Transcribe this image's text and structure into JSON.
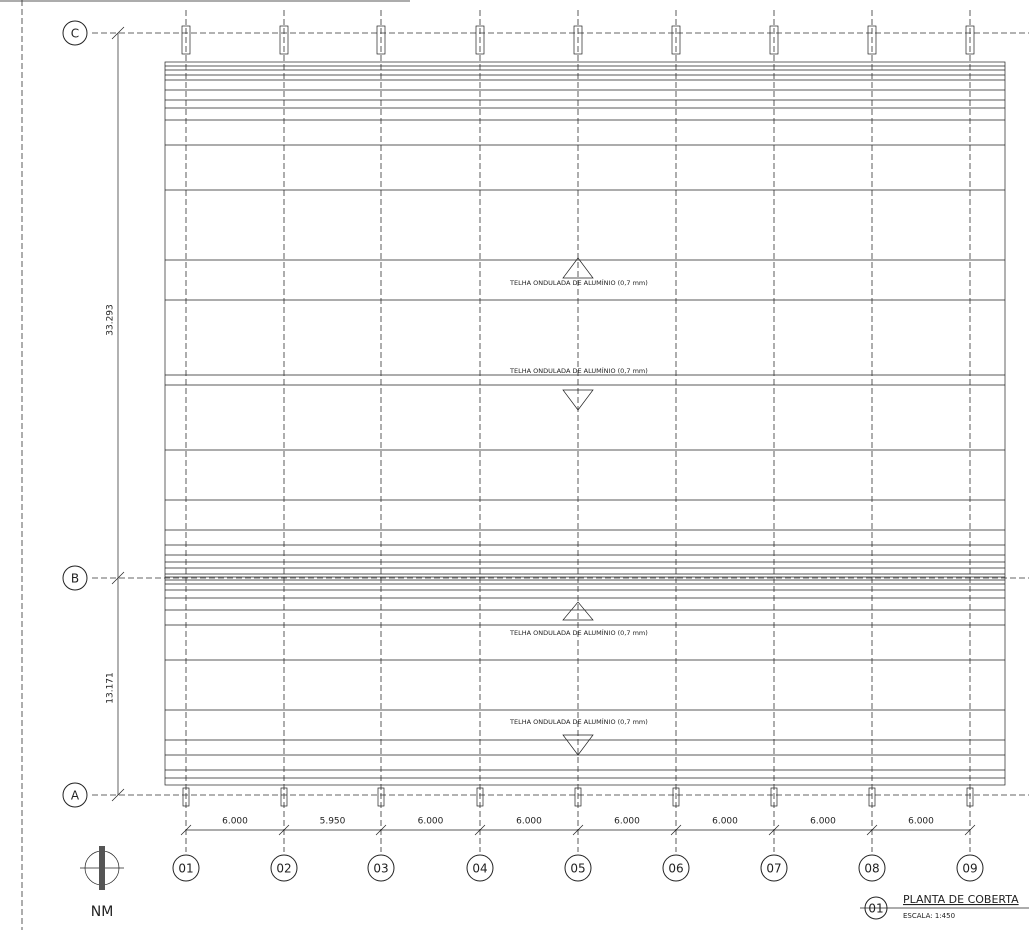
{
  "grid_rows": [
    {
      "label": "C"
    },
    {
      "label": "B"
    },
    {
      "label": "A"
    }
  ],
  "grid_columns": [
    "01",
    "02",
    "03",
    "04",
    "05",
    "06",
    "07",
    "08",
    "09"
  ],
  "vertical_dimensions": [
    "33.293",
    "13.171"
  ],
  "horizontal_dimensions": [
    "6.000",
    "5.950",
    "6.000",
    "6.000",
    "6.000",
    "6.000",
    "6.000",
    "6.000"
  ],
  "roof_labels": [
    "TELHA ONDULADA DE ALUMÍNIO (0,7 mm)",
    "TELHA ONDULADA DE ALUMÍNIO (0,7 mm)",
    "TELHA ONDULADA DE ALUMÍNIO (0,7 mm)",
    "TELHA ONDULADA DE ALUMÍNIO (0,7 mm)"
  ],
  "view_title": {
    "number": "01",
    "title": "PLANTA DE COBERTA",
    "scale": "ESCALA: 1:450"
  },
  "north": "NM"
}
